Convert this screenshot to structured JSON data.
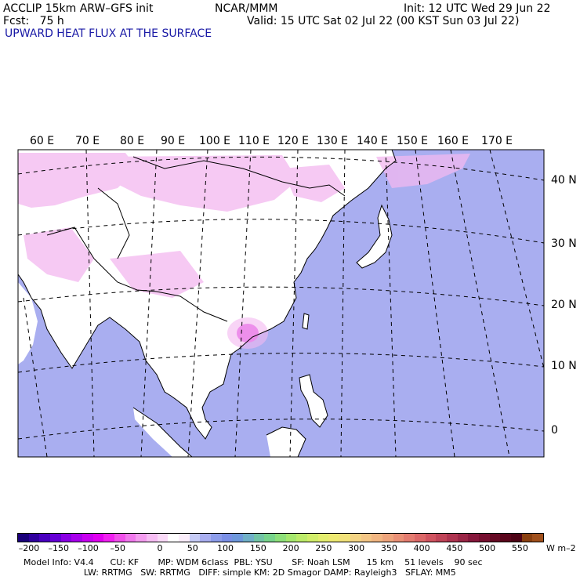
{
  "header": {
    "line1_left": "ACCLIP 15km ARW–GFS init",
    "line1_center": "NCAR/MMM",
    "line1_right": "Init: 12 UTC Wed 29 Jun 22",
    "line2_left": "Fcst:   75 h",
    "line2_right": "Valid: 15 UTC Sat 02 Jul 22 (00 KST Sun 03 Jul 22)",
    "field_title": "UPWARD HEAT FLUX AT THE SURFACE"
  },
  "map": {
    "lon_labels": [
      "60 E",
      "70 E",
      "80 E",
      "90 E",
      "100 E",
      "110 E",
      "120 E",
      "130 E",
      "140 E",
      "150 E",
      "160 E",
      "170 E"
    ],
    "lat_labels": [
      "40 N",
      "30 N",
      "20 N",
      "10 N",
      "0"
    ],
    "colors": {
      "ocean_fill": "#a9aef0",
      "land_fill": "#ffffff",
      "negative_flux": "#f3b8f0",
      "strong_negative": "#e040e0",
      "coast": "#000000"
    }
  },
  "colorbar": {
    "labels": [
      "–200",
      "–150",
      "–100",
      "–50",
      "0",
      "50",
      "100",
      "150",
      "200",
      "250",
      "300",
      "350",
      "400",
      "450",
      "500",
      "550"
    ],
    "units": "W m–2",
    "colors": [
      "#1a007a",
      "#30009e",
      "#4a00c0",
      "#6600d6",
      "#8a00e4",
      "#a800ec",
      "#c800f0",
      "#e000f0",
      "#f020f0",
      "#f050ea",
      "#f078ec",
      "#f49cef",
      "#f7bdf4",
      "#fadaf8",
      "#ffffff",
      "#fbeefb",
      "#c6cbf6",
      "#a9aef0",
      "#8c9cea",
      "#7a8fe6",
      "#6e98dc",
      "#70b0c8",
      "#72c4a6",
      "#78d48c",
      "#8ee07a",
      "#a6e86e",
      "#bdec6a",
      "#d2ee6a",
      "#e4ee6e",
      "#eeea72",
      "#f2e27a",
      "#f4d484",
      "#f4c686",
      "#f2b682",
      "#eea47c",
      "#ea9076",
      "#e47c70",
      "#dc6868",
      "#d05460",
      "#c04458",
      "#ae3450",
      "#9a2646",
      "#86183c",
      "#761030",
      "#660a24",
      "#5a061c",
      "#4e0416",
      "#8a4010",
      "#a0501c"
    ]
  },
  "model_info": {
    "line1": "Model Info: V4.4      CU: KF       MP: WDM 6class  PBL: YSU       SF: Noah LSM      15 km    51 levels    90 sec",
    "line2": "                      LW: RRTMG   SW: RRTMG   DIFF: simple KM: 2D Smagor DAMP: Rayleigh3   SFLAY: MM5"
  }
}
